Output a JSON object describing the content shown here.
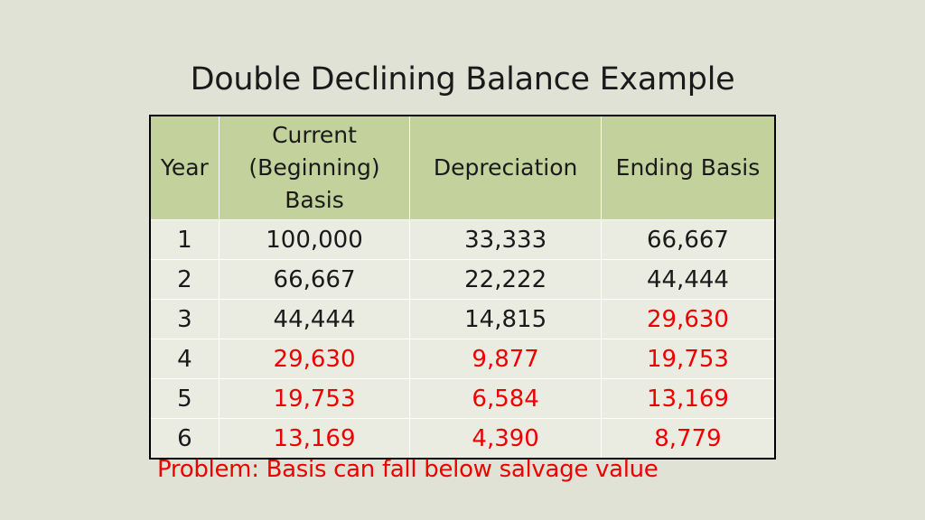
{
  "title": "Double Declining Balance Example",
  "table": {
    "headers": [
      "Year",
      "Current (Beginning) Basis",
      "Depreciation",
      "Ending Basis"
    ],
    "rows": [
      {
        "year": "1",
        "current": "100,000",
        "depreciation": "33,333",
        "ending": "66,667",
        "red": [
          false,
          false,
          false
        ]
      },
      {
        "year": "2",
        "current": "66,667",
        "depreciation": "22,222",
        "ending": "44,444",
        "red": [
          false,
          false,
          false
        ]
      },
      {
        "year": "3",
        "current": "44,444",
        "depreciation": "14,815",
        "ending": "29,630",
        "red": [
          false,
          false,
          true
        ]
      },
      {
        "year": "4",
        "current": "29,630",
        "depreciation": "9,877",
        "ending": "19,753",
        "red": [
          true,
          true,
          true
        ]
      },
      {
        "year": "5",
        "current": "19,753",
        "depreciation": "6,584",
        "ending": "13,169",
        "red": [
          true,
          true,
          true
        ]
      },
      {
        "year": "6",
        "current": "13,169",
        "depreciation": "4,390",
        "ending": "8,779",
        "red": [
          true,
          true,
          true
        ]
      }
    ]
  },
  "note": "Problem: Basis can fall below salvage value",
  "colors": {
    "background": "#dfe2d4",
    "header_fill": "#c3d19c",
    "row_fill": "#eaece2",
    "highlight_text": "#ee0000"
  }
}
